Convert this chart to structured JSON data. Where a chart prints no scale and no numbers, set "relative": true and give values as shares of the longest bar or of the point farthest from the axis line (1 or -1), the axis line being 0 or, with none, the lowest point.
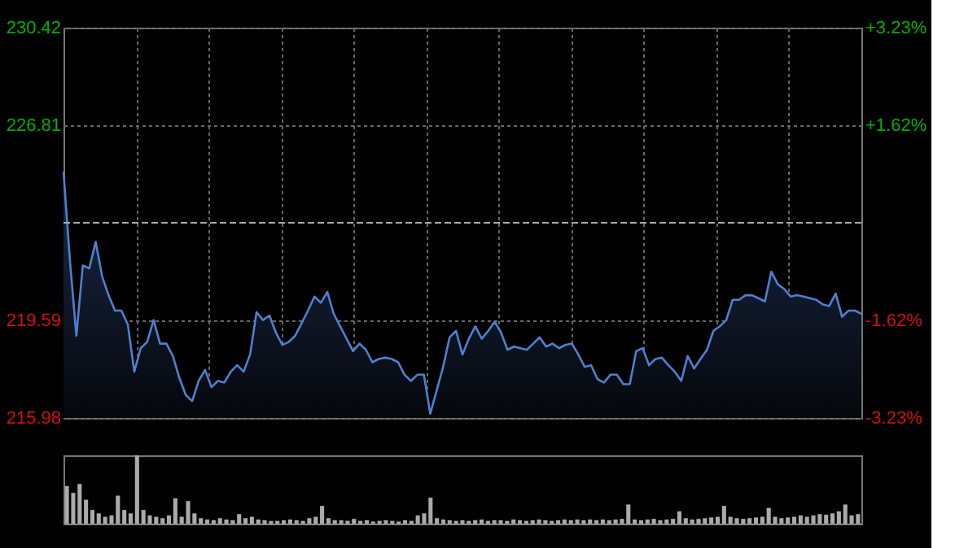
{
  "chart_data": [
    {
      "type": "area",
      "categories": [
        null,
        null,
        null,
        null,
        null,
        null,
        null,
        null,
        null,
        null,
        null,
        null,
        null,
        null,
        null,
        null,
        null,
        null,
        null,
        null,
        null,
        null,
        null,
        null,
        null,
        null,
        null,
        null,
        null,
        null,
        null,
        null,
        null,
        null,
        null,
        null,
        null,
        null,
        null,
        null,
        null,
        null,
        null,
        null,
        null,
        null,
        null,
        null,
        null,
        null,
        null,
        null,
        null,
        null,
        null,
        null,
        null,
        null,
        null,
        null,
        null,
        null,
        null,
        null,
        null,
        null,
        null,
        null,
        null,
        null,
        null,
        null,
        null,
        null,
        null,
        null,
        null,
        null,
        null,
        null,
        null,
        null,
        null,
        null,
        null,
        null,
        null,
        null,
        null,
        null,
        null,
        null,
        null,
        null,
        null,
        null,
        null,
        null,
        null,
        null,
        null,
        null,
        null,
        null,
        null,
        null,
        null,
        null,
        null,
        null,
        null,
        null,
        null,
        null,
        null,
        null,
        null,
        null,
        null,
        null,
        null,
        null,
        null,
        null,
        null
      ],
      "series": [
        {
          "color": "#4d80d0",
          "values": [
            225.09,
            221.79,
            219.02,
            221.62,
            221.51,
            222.49,
            221.22,
            220.52,
            219.95,
            219.95,
            219.43,
            217.69,
            218.56,
            218.79,
            219.6,
            218.73,
            218.73,
            218.27,
            217.46,
            216.83,
            216.6,
            217.35,
            217.75,
            217.12,
            217.35,
            217.29,
            217.69,
            217.93,
            217.69,
            218.33,
            219.89,
            219.6,
            219.77,
            219.14,
            218.68,
            218.79,
            219.02,
            219.48,
            219.95,
            220.47,
            220.24,
            220.64,
            219.83,
            219.37,
            218.91,
            218.45,
            218.73,
            218.5,
            218.04,
            218.16,
            218.21,
            218.16,
            218.04,
            217.58,
            217.35,
            217.58,
            217.58,
            216.14,
            217.0,
            217.87,
            218.96,
            219.2,
            218.33,
            218.91,
            219.37,
            218.91,
            219.2,
            219.54,
            219.14,
            218.5,
            218.62,
            218.56,
            218.5,
            218.73,
            218.96,
            218.62,
            218.73,
            218.56,
            218.68,
            218.73,
            218.33,
            217.87,
            217.93,
            217.41,
            217.29,
            217.58,
            217.58,
            217.23,
            217.23,
            218.45,
            218.56,
            217.93,
            218.16,
            218.21,
            217.93,
            217.69,
            217.35,
            218.27,
            217.81,
            218.16,
            218.5,
            219.2,
            219.37,
            219.6,
            220.35,
            220.35,
            220.52,
            220.52,
            220.41,
            220.29,
            221.39,
            220.93,
            220.75,
            220.47,
            220.52,
            220.47,
            220.41,
            220.35,
            220.18,
            220.12,
            220.58,
            219.72,
            219.95,
            219.95,
            219.83
          ]
        }
      ],
      "ylim": [
        215.98,
        230.42
      ],
      "yticks": [
        230.42,
        226.81,
        219.59,
        215.98
      ],
      "y2lim": [
        -3.23,
        3.23
      ],
      "y2ticks": [
        {
          "value": 3.23,
          "label": "+3.23%"
        },
        {
          "value": 1.62,
          "label": "+1.62%"
        },
        {
          "value": -1.62,
          "label": "-1.62%"
        },
        {
          "value": -3.23,
          "label": "-3.23%"
        }
      ],
      "ref_lines": [
        {
          "axis": "y",
          "value": 223.2,
          "line_style": "dashed"
        }
      ],
      "grid": true,
      "tick_labels": "y"
    },
    {
      "type": "bar",
      "relative": true,
      "categories": [
        null,
        null,
        null,
        null,
        null,
        null,
        null,
        null,
        null,
        null,
        null,
        null,
        null,
        null,
        null,
        null,
        null,
        null,
        null,
        null,
        null,
        null,
        null,
        null,
        null,
        null,
        null,
        null,
        null,
        null,
        null,
        null,
        null,
        null,
        null,
        null,
        null,
        null,
        null,
        null,
        null,
        null,
        null,
        null,
        null,
        null,
        null,
        null,
        null,
        null,
        null,
        null,
        null,
        null,
        null,
        null,
        null,
        null,
        null,
        null,
        null,
        null,
        null,
        null,
        null,
        null,
        null,
        null,
        null,
        null,
        null,
        null,
        null,
        null,
        null,
        null,
        null,
        null,
        null,
        null,
        null,
        null,
        null,
        null,
        null,
        null,
        null,
        null,
        null,
        null,
        null,
        null,
        null,
        null,
        null,
        null,
        null,
        null,
        null,
        null,
        null,
        null,
        null,
        null,
        null,
        null,
        null,
        null,
        null,
        null,
        null,
        null,
        null,
        null,
        null,
        null,
        null,
        null,
        null,
        null,
        null,
        null,
        null,
        null,
        null
      ],
      "series": [
        {
          "color": "#aaaaaa",
          "values": [
            0.55,
            0.45,
            0.58,
            0.35,
            0.2,
            0.15,
            0.1,
            0.12,
            0.41,
            0.2,
            0.15,
            1.0,
            0.2,
            0.12,
            0.1,
            0.08,
            0.12,
            0.37,
            0.1,
            0.33,
            0.15,
            0.08,
            0.06,
            0.05,
            0.08,
            0.06,
            0.05,
            0.14,
            0.08,
            0.1,
            0.06,
            0.05,
            0.04,
            0.04,
            0.05,
            0.06,
            0.05,
            0.04,
            0.08,
            0.1,
            0.26,
            0.08,
            0.05,
            0.05,
            0.04,
            0.07,
            0.04,
            0.05,
            0.03,
            0.04,
            0.05,
            0.04,
            0.03,
            0.05,
            0.04,
            0.12,
            0.15,
            0.38,
            0.08,
            0.06,
            0.05,
            0.04,
            0.05,
            0.04,
            0.05,
            0.06,
            0.04,
            0.05,
            0.05,
            0.04,
            0.06,
            0.05,
            0.04,
            0.05,
            0.06,
            0.05,
            0.04,
            0.05,
            0.06,
            0.05,
            0.06,
            0.05,
            0.06,
            0.05,
            0.06,
            0.05,
            0.06,
            0.07,
            0.28,
            0.06,
            0.05,
            0.06,
            0.07,
            0.05,
            0.06,
            0.07,
            0.18,
            0.08,
            0.06,
            0.07,
            0.08,
            0.09,
            0.1,
            0.26,
            0.1,
            0.08,
            0.07,
            0.08,
            0.09,
            0.1,
            0.23,
            0.1,
            0.08,
            0.09,
            0.1,
            0.12,
            0.1,
            0.12,
            0.14,
            0.13,
            0.15,
            0.18,
            0.28,
            0.12,
            0.14
          ]
        }
      ],
      "legend": false
    }
  ]
}
